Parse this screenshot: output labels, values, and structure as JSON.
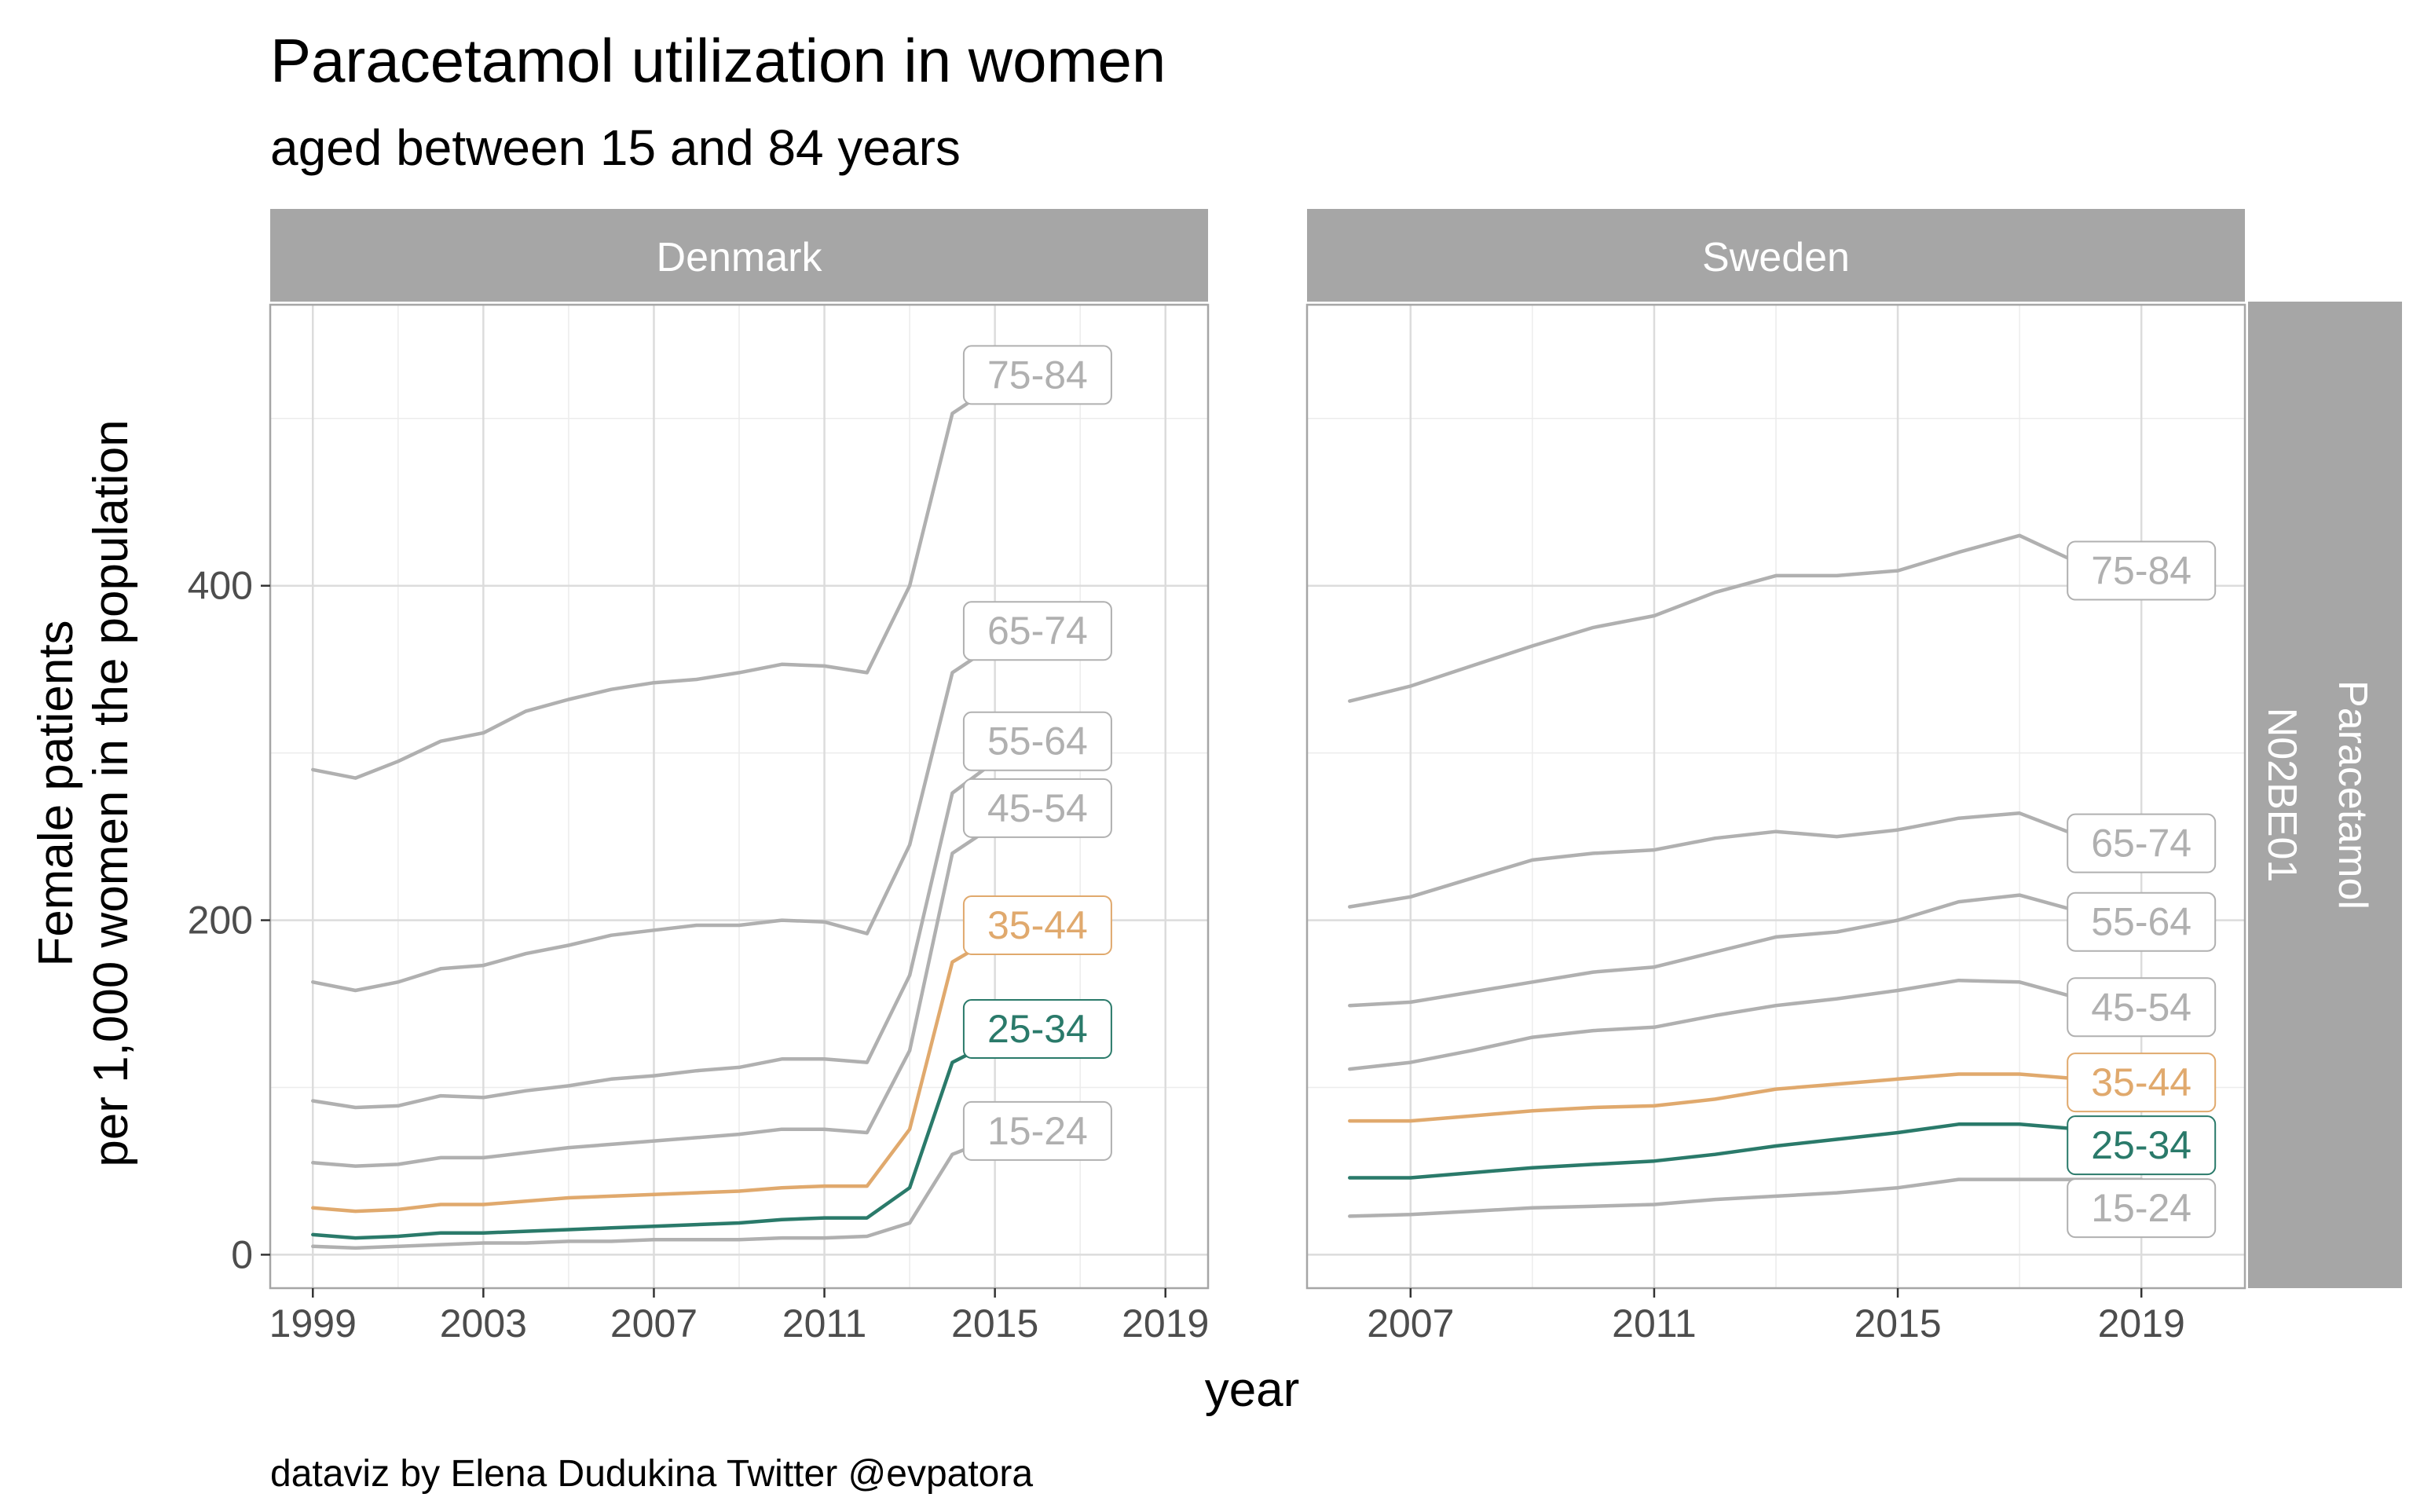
{
  "title": "Paracetamol utilization in women",
  "subtitle": "aged between 15 and 84 years",
  "caption": "dataviz by Elena Dudukina Twitter @evpatora",
  "x_axis_title": "year",
  "y_axis_title_lines": [
    "Female patients",
    "per 1,000 women in the population"
  ],
  "row_strip_lines": [
    "Paracetamol",
    "N02BE01"
  ],
  "colors": {
    "grey": "#b0b0b0",
    "highlight_35_44": "#e0a96d",
    "highlight_25_34": "#2a7a6a",
    "strip_bg": "#a6a6a6",
    "grid": "#dcdcdc",
    "panel_border": "#a6a6a6"
  },
  "chart_data": [
    {
      "type": "line",
      "panel": "Denmark",
      "xlabel": "year",
      "ylabel": "Female patients per 1,000 women in the population",
      "xlim": [
        1998,
        2020
      ],
      "ylim": [
        -20,
        568
      ],
      "x_ticks": [
        1999,
        2003,
        2007,
        2011,
        2015,
        2019
      ],
      "y_ticks": [
        0,
        200,
        400
      ],
      "grid": true,
      "x": [
        1999,
        2000,
        2001,
        2002,
        2003,
        2004,
        2005,
        2006,
        2007,
        2008,
        2009,
        2010,
        2011,
        2012,
        2013,
        2014,
        2015,
        2016
      ],
      "series": [
        {
          "name": "15-24",
          "color": "grey",
          "values": [
            5,
            4,
            5,
            6,
            7,
            7,
            8,
            8,
            9,
            9,
            9,
            10,
            10,
            11,
            19,
            60,
            70,
            74
          ]
        },
        {
          "name": "25-34",
          "color": "highlight_25_34",
          "values": [
            12,
            10,
            11,
            13,
            13,
            14,
            15,
            16,
            17,
            18,
            19,
            21,
            22,
            22,
            40,
            115,
            128,
            135
          ]
        },
        {
          "name": "35-44",
          "color": "highlight_35_44",
          "values": [
            28,
            26,
            27,
            30,
            30,
            32,
            34,
            35,
            36,
            37,
            38,
            40,
            41,
            41,
            75,
            175,
            190,
            197
          ]
        },
        {
          "name": "45-54",
          "color": "grey",
          "values": [
            55,
            53,
            54,
            58,
            58,
            61,
            64,
            66,
            68,
            70,
            72,
            75,
            75,
            73,
            122,
            240,
            257,
            267
          ]
        },
        {
          "name": "55-64",
          "color": "grey",
          "values": [
            92,
            88,
            89,
            95,
            94,
            98,
            101,
            105,
            107,
            110,
            112,
            117,
            117,
            115,
            167,
            276,
            295,
            307
          ]
        },
        {
          "name": "65-74",
          "color": "grey",
          "values": [
            163,
            158,
            163,
            171,
            173,
            180,
            185,
            191,
            194,
            197,
            197,
            200,
            199,
            192,
            245,
            348,
            365,
            373
          ]
        },
        {
          "name": "75-84",
          "color": "grey",
          "values": [
            290,
            285,
            295,
            307,
            312,
            325,
            332,
            338,
            342,
            344,
            348,
            353,
            352,
            348,
            400,
            503,
            520,
            526
          ]
        }
      ]
    },
    {
      "type": "line",
      "panel": "Sweden",
      "xlabel": "year",
      "ylabel": "Female patients per 1,000 women in the population",
      "xlim": [
        2005.3,
        2020.7
      ],
      "ylim": [
        -20,
        568
      ],
      "x_ticks": [
        2007,
        2011,
        2015,
        2019
      ],
      "y_ticks": [
        0,
        200,
        400
      ],
      "grid": true,
      "x": [
        2006,
        2007,
        2008,
        2009,
        2010,
        2011,
        2012,
        2013,
        2014,
        2015,
        2016,
        2017,
        2018,
        2019
      ],
      "series": [
        {
          "name": "15-24",
          "color": "grey",
          "values": [
            23,
            24,
            26,
            28,
            29,
            30,
            33,
            35,
            37,
            40,
            45,
            45,
            45,
            45
          ]
        },
        {
          "name": "25-34",
          "color": "highlight_25_34",
          "values": [
            46,
            46,
            49,
            52,
            54,
            56,
            60,
            65,
            69,
            73,
            78,
            78,
            75,
            73
          ]
        },
        {
          "name": "35-44",
          "color": "highlight_35_44",
          "values": [
            80,
            80,
            83,
            86,
            88,
            89,
            93,
            99,
            102,
            105,
            108,
            108,
            105,
            103
          ]
        },
        {
          "name": "45-54",
          "color": "grey",
          "values": [
            111,
            115,
            122,
            130,
            134,
            136,
            143,
            149,
            153,
            158,
            164,
            163,
            153,
            148
          ]
        },
        {
          "name": "55-64",
          "color": "grey",
          "values": [
            149,
            151,
            157,
            163,
            169,
            172,
            181,
            190,
            193,
            200,
            211,
            215,
            205,
            199
          ]
        },
        {
          "name": "65-74",
          "color": "grey",
          "values": [
            208,
            214,
            225,
            236,
            240,
            242,
            249,
            253,
            250,
            254,
            261,
            264,
            250,
            246
          ]
        },
        {
          "name": "75-84",
          "color": "grey",
          "values": [
            331,
            340,
            352,
            364,
            375,
            382,
            396,
            406,
            406,
            409,
            420,
            430,
            413,
            409
          ]
        }
      ]
    }
  ]
}
